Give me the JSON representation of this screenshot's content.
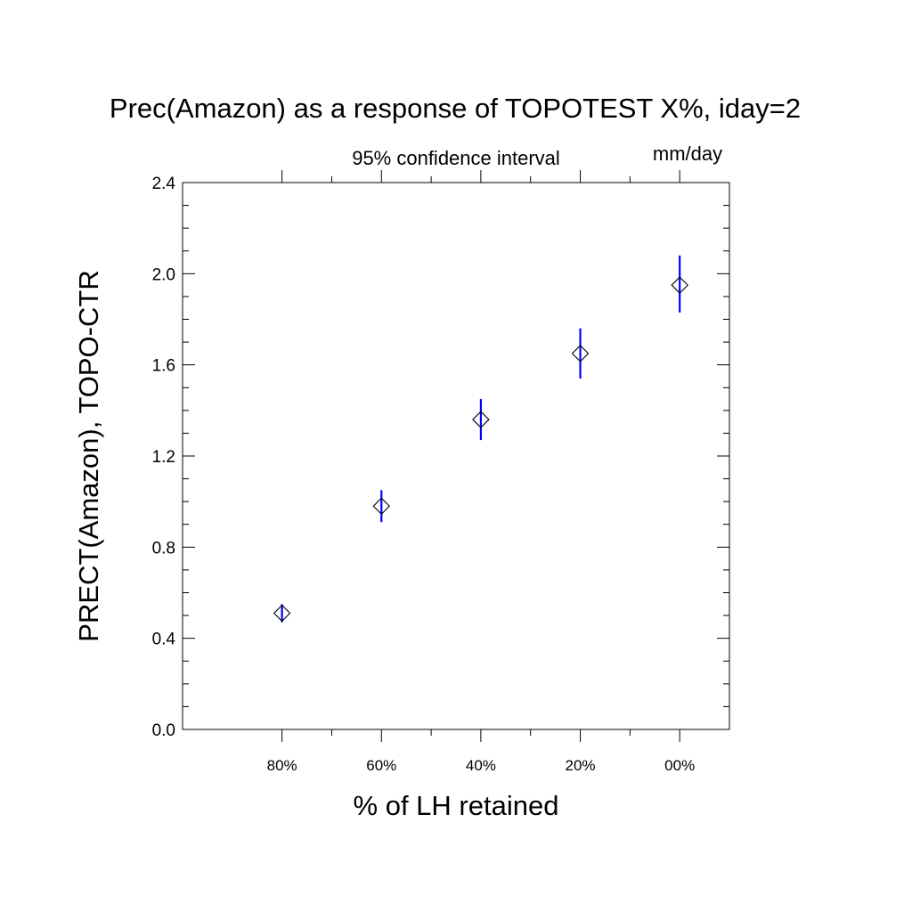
{
  "chart_data": {
    "type": "scatter",
    "title": "Prec(Amazon) as a response of TOPOTEST X%, iday=2",
    "subtitle": "95% confidence interval",
    "units": "mm/day",
    "xlabel": "% of LH retained",
    "ylabel": "PRECT(Amazon), TOPO-CTR",
    "categories": [
      "80%",
      "60%",
      "40%",
      "20%",
      "00%"
    ],
    "y_ticks": [
      "0.0",
      "0.4",
      "0.8",
      "1.2",
      "1.6",
      "2.0",
      "2.4"
    ],
    "ylim": [
      0,
      2.4
    ],
    "grid": false,
    "series": [
      {
        "values": [
          0.51,
          0.98,
          1.36,
          1.65,
          1.95
        ],
        "ci_low": [
          0.47,
          0.91,
          1.27,
          1.54,
          1.83
        ],
        "ci_high": [
          0.55,
          1.05,
          1.45,
          1.76,
          2.08
        ],
        "marker": "diamond",
        "marker_color": "#000000",
        "ci_color": "#0000ff"
      }
    ]
  }
}
